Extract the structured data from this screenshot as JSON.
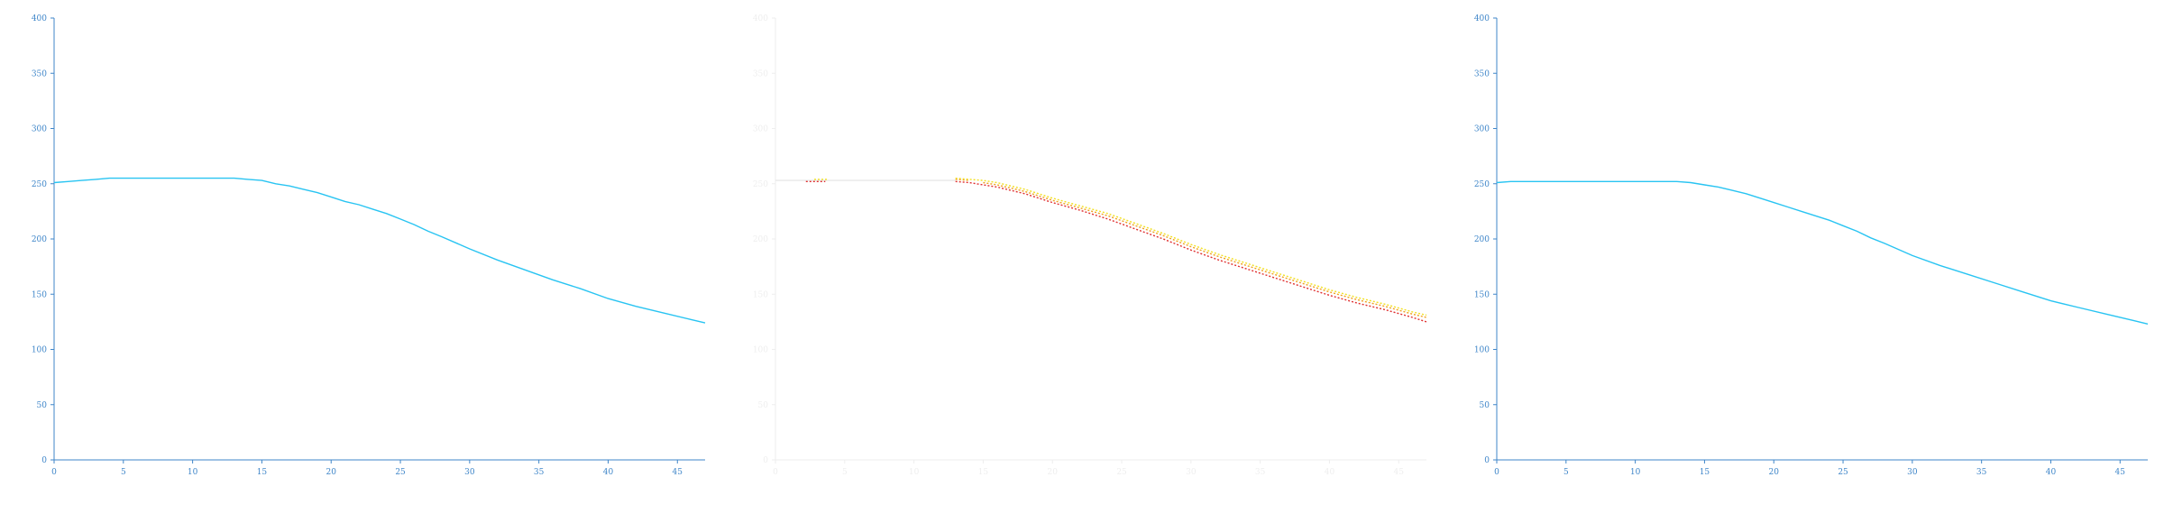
{
  "chart_data": [
    {
      "type": "line",
      "xlim": [
        0,
        47
      ],
      "ylim": [
        0,
        400
      ],
      "xticks": [
        "0",
        "5",
        "10",
        "15",
        "20",
        "25",
        "30",
        "35",
        "40",
        "45"
      ],
      "yticks": [
        "0",
        "50",
        "100",
        "150",
        "200",
        "250",
        "300",
        "350",
        "400"
      ],
      "axis_color": "#3f86c9",
      "series": [
        {
          "color": "#29c4f2",
          "style": "solid",
          "x": [
            0,
            1,
            2,
            3,
            4,
            5,
            6,
            8,
            10,
            12,
            13,
            14,
            15,
            16,
            17,
            18,
            19,
            20,
            21,
            22,
            23,
            24,
            25,
            26,
            27,
            28,
            30,
            32,
            34,
            36,
            38,
            40,
            42,
            44,
            46,
            47
          ],
          "y": [
            251,
            252,
            253,
            254,
            255,
            255,
            255,
            255,
            255,
            255,
            255,
            254,
            253,
            250,
            248,
            245,
            242,
            238,
            234,
            231,
            227,
            223,
            218,
            213,
            207,
            202,
            191,
            181,
            172,
            163,
            155,
            146,
            139,
            133,
            127,
            124
          ]
        }
      ]
    },
    {
      "type": "line",
      "xlim": [
        0,
        47
      ],
      "ylim": [
        0,
        400
      ],
      "xticks": [
        "0",
        "5",
        "10",
        "15",
        "20",
        "25",
        "30",
        "35",
        "40",
        "45"
      ],
      "yticks": [
        "0",
        "50",
        "100",
        "150",
        "200",
        "250",
        "300",
        "350",
        "400"
      ],
      "axis_color": "#eeeeee",
      "series": [
        {
          "color": "#e8e8e8",
          "style": "solid",
          "x": [
            0,
            13
          ],
          "y": [
            253,
            253
          ]
        },
        {
          "color": "#e03030",
          "style": "dotted",
          "x": [
            2.2,
            3.6,
            13,
            14,
            15,
            16,
            17,
            18,
            19,
            20,
            22,
            24,
            26,
            28,
            30,
            32,
            34,
            36,
            38,
            40,
            42,
            44,
            46,
            47
          ],
          "y": [
            252,
            252,
            252,
            251,
            249,
            247,
            244,
            241,
            237,
            233,
            226,
            218,
            209,
            200,
            190,
            181,
            173,
            165,
            157,
            149,
            142,
            136,
            129,
            125
          ]
        },
        {
          "color": "#f0a020",
          "style": "dotted",
          "x": [
            13,
            14,
            15,
            16,
            17,
            18,
            19,
            20,
            22,
            24,
            26,
            28,
            30,
            32,
            34,
            36,
            38,
            40,
            42,
            44,
            46,
            47
          ],
          "y": [
            254,
            253,
            251,
            249,
            246,
            243,
            239,
            235,
            228,
            221,
            212,
            203,
            193,
            184,
            176,
            168,
            160,
            152,
            145,
            139,
            132,
            129
          ]
        },
        {
          "color": "#f2e021",
          "style": "dotted",
          "x": [
            2.8,
            3.8,
            13,
            14,
            15,
            16,
            17,
            18,
            19,
            20,
            22,
            24,
            26,
            28,
            30,
            32,
            34,
            36,
            38,
            40,
            42,
            44,
            46,
            47
          ],
          "y": [
            254,
            254,
            255,
            254,
            253,
            251,
            248,
            245,
            241,
            237,
            230,
            223,
            214,
            205,
            195,
            186,
            178,
            170,
            162,
            154,
            147,
            141,
            134,
            131
          ]
        }
      ]
    },
    {
      "type": "line",
      "xlim": [
        0,
        47
      ],
      "ylim": [
        0,
        400
      ],
      "xticks": [
        "0",
        "5",
        "10",
        "15",
        "20",
        "25",
        "30",
        "35",
        "40",
        "45"
      ],
      "yticks": [
        "0",
        "50",
        "100",
        "150",
        "200",
        "250",
        "300",
        "350",
        "400"
      ],
      "axis_color": "#3f86c9",
      "series": [
        {
          "color": "#29c4f2",
          "style": "solid",
          "x": [
            0,
            1,
            2,
            4,
            6,
            8,
            10,
            12,
            13,
            14,
            15,
            16,
            17,
            18,
            19,
            20,
            21,
            22,
            23,
            24,
            25,
            26,
            27,
            28,
            30,
            32,
            34,
            36,
            38,
            40,
            42,
            44,
            46,
            47
          ],
          "y": [
            251,
            252,
            252,
            252,
            252,
            252,
            252,
            252,
            252,
            251,
            249,
            247,
            244,
            241,
            237,
            233,
            229,
            225,
            221,
            217,
            212,
            207,
            201,
            196,
            185,
            176,
            168,
            160,
            152,
            144,
            138,
            132,
            126,
            123
          ]
        }
      ]
    }
  ]
}
